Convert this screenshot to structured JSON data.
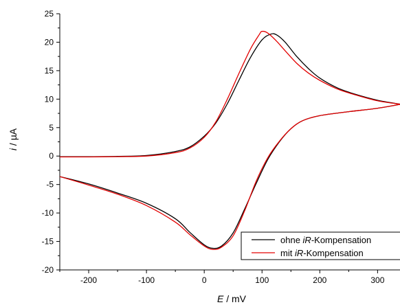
{
  "chart_data": {
    "type": "line",
    "title": "",
    "xlabel": {
      "symbol": "E",
      "unit": " / mV"
    },
    "ylabel": {
      "symbol": "i",
      "unit": " / µA"
    },
    "xlim": [
      -250,
      340
    ],
    "ylim": [
      -20,
      25
    ],
    "x_ticks": [
      -200,
      -100,
      0,
      100,
      200,
      300
    ],
    "y_ticks": [
      -20,
      -15,
      -10,
      -5,
      0,
      5,
      10,
      15,
      20,
      25
    ],
    "grid": false,
    "legend_position": "bottom-right",
    "series": [
      {
        "name": "ohne iR-Kompensation",
        "legend_parts": [
          "ohne ",
          "iR",
          "-Kompensation"
        ],
        "color": "#000000",
        "forward": [
          [
            -250,
            -0.1
          ],
          [
            -200,
            -0.1
          ],
          [
            -150,
            -0.05
          ],
          [
            -100,
            0.1
          ],
          [
            -50,
            0.8
          ],
          [
            -25,
            1.6
          ],
          [
            0,
            3.5
          ],
          [
            20,
            5.8
          ],
          [
            40,
            9.2
          ],
          [
            60,
            13.3
          ],
          [
            80,
            17.3
          ],
          [
            100,
            20.4
          ],
          [
            115,
            21.4
          ],
          [
            125,
            21.3
          ],
          [
            140,
            20.0
          ],
          [
            160,
            17.5
          ],
          [
            180,
            15.4
          ],
          [
            200,
            13.7
          ],
          [
            230,
            12.0
          ],
          [
            260,
            10.9
          ],
          [
            300,
            9.8
          ],
          [
            340,
            9.1
          ]
        ],
        "reverse": [
          [
            340,
            9.1
          ],
          [
            300,
            8.4
          ],
          [
            250,
            7.8
          ],
          [
            200,
            7.1
          ],
          [
            170,
            6.2
          ],
          [
            150,
            4.8
          ],
          [
            130,
            2.5
          ],
          [
            110,
            -0.6
          ],
          [
            90,
            -4.8
          ],
          [
            70,
            -9.3
          ],
          [
            50,
            -13.5
          ],
          [
            30,
            -15.8
          ],
          [
            15,
            -16.2
          ],
          [
            0,
            -15.6
          ],
          [
            -25,
            -13.4
          ],
          [
            -50,
            -11.0
          ],
          [
            -100,
            -8.3
          ],
          [
            -150,
            -6.5
          ],
          [
            -200,
            -4.9
          ],
          [
            -250,
            -3.6
          ]
        ]
      },
      {
        "name": "mit iR-Kompensation",
        "legend_parts": [
          "mit ",
          "iR",
          "-Kompensation"
        ],
        "color": "#e30000",
        "forward": [
          [
            -250,
            -0.15
          ],
          [
            -200,
            -0.15
          ],
          [
            -150,
            -0.1
          ],
          [
            -100,
            0.0
          ],
          [
            -50,
            0.6
          ],
          [
            -25,
            1.4
          ],
          [
            0,
            3.3
          ],
          [
            20,
            6.0
          ],
          [
            40,
            10.0
          ],
          [
            60,
            14.5
          ],
          [
            80,
            18.8
          ],
          [
            95,
            21.3
          ],
          [
            100,
            21.9
          ],
          [
            110,
            21.6
          ],
          [
            125,
            20.2
          ],
          [
            140,
            18.5
          ],
          [
            160,
            16.3
          ],
          [
            180,
            14.6
          ],
          [
            200,
            13.3
          ],
          [
            230,
            11.8
          ],
          [
            260,
            10.8
          ],
          [
            300,
            9.7
          ],
          [
            340,
            9.1
          ]
        ],
        "reverse": [
          [
            340,
            9.1
          ],
          [
            300,
            8.4
          ],
          [
            250,
            7.8
          ],
          [
            200,
            7.1
          ],
          [
            170,
            6.2
          ],
          [
            150,
            4.8
          ],
          [
            130,
            2.6
          ],
          [
            110,
            -0.3
          ],
          [
            90,
            -4.4
          ],
          [
            70,
            -9.6
          ],
          [
            50,
            -14.0
          ],
          [
            30,
            -16.0
          ],
          [
            15,
            -16.4
          ],
          [
            0,
            -15.8
          ],
          [
            -25,
            -13.8
          ],
          [
            -50,
            -11.6
          ],
          [
            -100,
            -8.7
          ],
          [
            -150,
            -6.7
          ],
          [
            -200,
            -5.1
          ],
          [
            -250,
            -3.6
          ]
        ]
      }
    ]
  }
}
